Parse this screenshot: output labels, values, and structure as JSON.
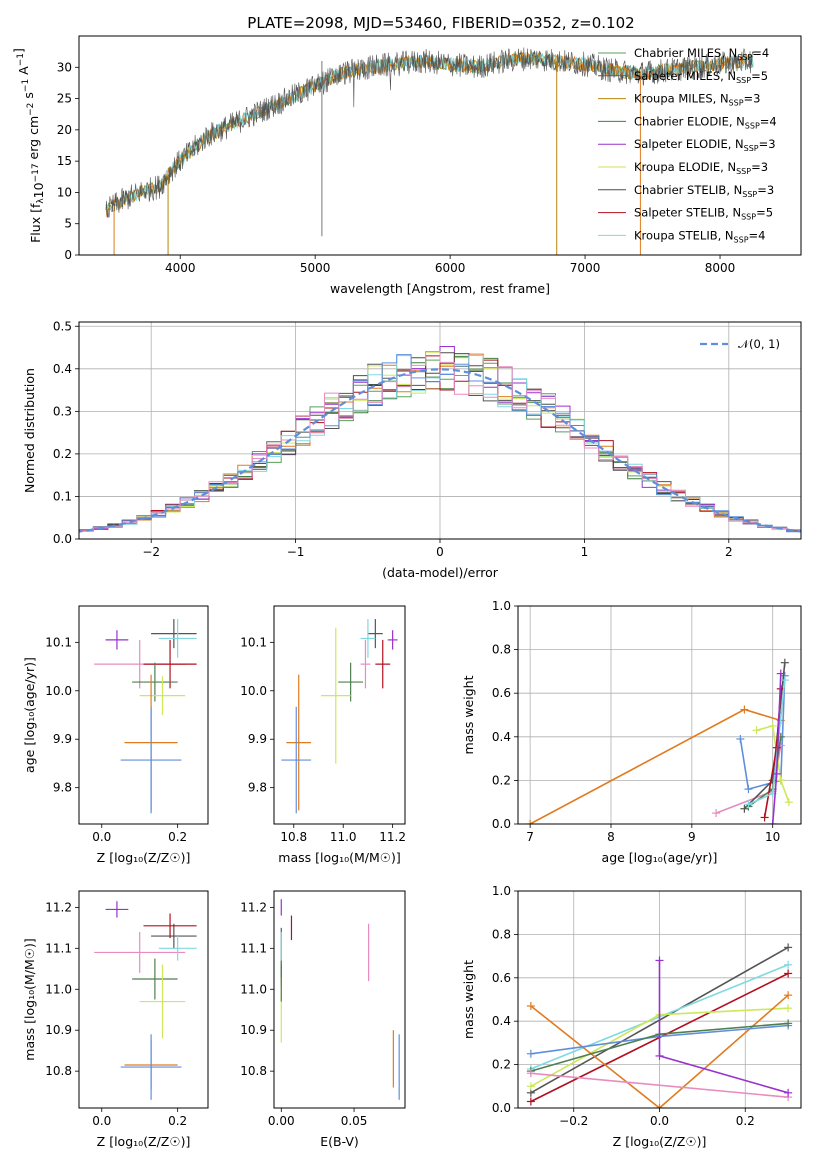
{
  "title": "PLATE=2098, MJD=53460, FIBERID=0352, z=0.102",
  "colors": {
    "Chabrier MILES": "#5aa05a",
    "Salpeter MILES": "#555555",
    "Kroupa MILES": "#b8860b",
    "Chabrier ELODIE": "#3f7f3f",
    "Salpeter ELODIE": "#9932cc",
    "Kroupa ELODIE": "#d4e157",
    "Chabrier STELIB": "#4d4d4d",
    "Salpeter STELIB": "#b01020",
    "Kroupa STELIB": "#80d8e0",
    "orange": "#e07b20",
    "blue": "#5f8fdc",
    "pink": "#e88cc0",
    "yellowgreen": "#cde85a",
    "darkgray": "#555555",
    "red": "#b01020",
    "cyan": "#80d8e0",
    "darkgreen": "#4f7f4f",
    "purple": "#9932cc"
  },
  "chart_data": [
    {
      "type": "line",
      "name": "spectrum",
      "xlabel": "wavelength [Angstrom, rest frame]",
      "ylabel_parts": [
        "Flux [f",
        "λ",
        "10",
        "−17",
        " erg cm",
        "−2",
        " s",
        "−1",
        " A",
        "−1",
        "]"
      ],
      "xlim": [
        3250,
        8600
      ],
      "ylim": [
        0,
        35
      ],
      "xticks": [
        4000,
        5000,
        6000,
        7000,
        8000
      ],
      "yticks": [
        0,
        5,
        10,
        15,
        20,
        25,
        30
      ],
      "legend": [
        {
          "name": "Chabrier MILES",
          "n": "4"
        },
        {
          "name": "Salpeter MILES",
          "n": "5"
        },
        {
          "name": "Kroupa MILES",
          "n": "3"
        },
        {
          "name": "Chabrier ELODIE",
          "n": "4"
        },
        {
          "name": "Salpeter ELODIE",
          "n": "3"
        },
        {
          "name": "Kroupa ELODIE",
          "n": "3"
        },
        {
          "name": "Chabrier STELIB",
          "n": "3"
        },
        {
          "name": "Salpeter STELIB",
          "n": "5"
        },
        {
          "name": "Kroupa STELIB",
          "n": "4"
        }
      ],
      "legend_sub": "SSP",
      "legend_prefix": "N",
      "legend_placement": "upper-right",
      "continuum": [
        [
          3450,
          7
        ],
        [
          3550,
          8.5
        ],
        [
          3700,
          10
        ],
        [
          3850,
          11
        ],
        [
          3950,
          14
        ],
        [
          4050,
          16
        ],
        [
          4200,
          19
        ],
        [
          4400,
          21
        ],
        [
          4600,
          23
        ],
        [
          4800,
          25
        ],
        [
          5000,
          27
        ],
        [
          5200,
          29
        ],
        [
          5400,
          30
        ],
        [
          5600,
          30.5
        ],
        [
          5800,
          31
        ],
        [
          6000,
          30.5
        ],
        [
          6200,
          30
        ],
        [
          6400,
          31
        ],
        [
          6600,
          31.5
        ],
        [
          6800,
          31
        ],
        [
          7000,
          30.5
        ],
        [
          7200,
          29.5
        ],
        [
          7400,
          29
        ],
        [
          7600,
          29.5
        ],
        [
          7800,
          30
        ],
        [
          8000,
          30.5
        ],
        [
          8200,
          31
        ]
      ],
      "drops": [
        {
          "x": 3510,
          "series": "orange"
        },
        {
          "x": 3910,
          "series": "Kroupa MILES"
        },
        {
          "x": 6790,
          "series": "Kroupa MILES"
        },
        {
          "x": 7410,
          "series": "orange"
        }
      ],
      "spikes": [
        [
          5050,
          3
        ],
        [
          5060,
          31
        ]
      ]
    },
    {
      "type": "step",
      "name": "residuals",
      "xlabel": "(data-model)/error",
      "ylabel": "Normed distribution",
      "xlim": [
        -2.5,
        2.5
      ],
      "ylim": [
        0,
        0.51
      ],
      "xticks": [
        -2,
        -1,
        0,
        1,
        2
      ],
      "xticklabels": [
        "−2",
        "−1",
        "0",
        "1",
        "2"
      ],
      "yticks": [
        0.0,
        0.1,
        0.2,
        0.3,
        0.4,
        0.5
      ],
      "yticklabels": [
        "0.0",
        "0.1",
        "0.2",
        "0.3",
        "0.4",
        "0.5"
      ],
      "grid": true,
      "gaussian_label": "𝒩(0, 1)",
      "gaussian": {
        "mean": 0,
        "sigma": 1
      },
      "bin_width": 0.1,
      "series_colors": [
        "#5aa05a",
        "#555555",
        "#e07b20",
        "#3f7f3f",
        "#9932cc",
        "#cde85a",
        "#4d4d4d",
        "#b01020",
        "#80d8e0",
        "#5f8fdc",
        "#e88cc0"
      ]
    },
    {
      "type": "errorbar",
      "name": "age-vs-Z",
      "xlabel": "Z [log₁₀(Z/Z☉)]",
      "ylabel": "age  [log₁₀(age/yr)]",
      "xlim": [
        -0.06,
        0.28
      ],
      "ylim": [
        9.725,
        10.175
      ],
      "xticks": [
        0.0,
        0.2
      ],
      "xticklabels": [
        "0.0",
        "0.2"
      ],
      "yticks": [
        9.8,
        9.9,
        10.0,
        10.1
      ],
      "yticklabels": [
        "9.8",
        "9.9",
        "10.0",
        "10.1"
      ],
      "points": [
        {
          "x": 0.04,
          "xe": 0.03,
          "y": 10.105,
          "ye": 0.02,
          "c": "#9932cc"
        },
        {
          "x": 0.1,
          "xe": 0.12,
          "y": 10.055,
          "ye": 0.05,
          "c": "#e88cc0"
        },
        {
          "x": 0.19,
          "xe": 0.06,
          "y": 10.118,
          "ye": 0.03,
          "c": "#555555"
        },
        {
          "x": 0.2,
          "xe": 0.05,
          "y": 10.108,
          "ye": 0.04,
          "c": "#80d8e0"
        },
        {
          "x": 0.18,
          "xe": 0.07,
          "y": 10.055,
          "ye": 0.05,
          "c": "#b01020"
        },
        {
          "x": 0.14,
          "xe": 0.06,
          "y": 10.018,
          "ye": 0.04,
          "c": "#4f7f4f"
        },
        {
          "x": 0.16,
          "xe": 0.06,
          "y": 9.99,
          "ye": 0.04,
          "c": "#cde85a"
        },
        {
          "x": 0.13,
          "xe": 0.07,
          "y": 9.893,
          "ye": 0.14,
          "c": "#e07b20"
        },
        {
          "x": 0.13,
          "xe": 0.08,
          "y": 9.857,
          "ye": 0.11,
          "c": "#5f8fdc"
        }
      ]
    },
    {
      "type": "errorbar",
      "name": "age-vs-mass",
      "xlabel": "mass [log₁₀(M/M☉)]",
      "xlim": [
        10.72,
        11.25
      ],
      "ylim": [
        9.725,
        10.175
      ],
      "xticks": [
        10.8,
        11.0,
        11.2
      ],
      "xticklabels": [
        "10.8",
        "11.0",
        "11.2"
      ],
      "yticks": [
        9.8,
        9.9,
        10.0,
        10.1
      ],
      "yticklabels": [
        "9.8",
        "9.9",
        "10.0",
        "10.1"
      ],
      "points": [
        {
          "x": 11.2,
          "xe": 0.02,
          "y": 10.105,
          "ye": 0.02,
          "c": "#9932cc"
        },
        {
          "x": 11.09,
          "xe": 0.02,
          "y": 10.055,
          "ye": 0.05,
          "c": "#e88cc0"
        },
        {
          "x": 11.13,
          "xe": 0.03,
          "y": 10.118,
          "ye": 0.03,
          "c": "#555555"
        },
        {
          "x": 11.1,
          "xe": 0.03,
          "y": 10.108,
          "ye": 0.04,
          "c": "#80d8e0"
        },
        {
          "x": 11.16,
          "xe": 0.03,
          "y": 10.055,
          "ye": 0.05,
          "c": "#b01020"
        },
        {
          "x": 11.03,
          "xe": 0.05,
          "y": 10.018,
          "ye": 0.04,
          "c": "#4f7f4f"
        },
        {
          "x": 10.97,
          "xe": 0.06,
          "y": 9.99,
          "ye": 0.14,
          "c": "#cde85a"
        },
        {
          "x": 10.82,
          "xe": 0.05,
          "y": 9.893,
          "ye": 0.14,
          "c": "#e07b20"
        },
        {
          "x": 10.81,
          "xe": 0.06,
          "y": 9.857,
          "ye": 0.11,
          "c": "#5f8fdc"
        }
      ]
    },
    {
      "type": "line",
      "name": "weight-vs-age",
      "xlabel": "age  [log₁₀(age/yr)]",
      "ylabel": "mass weight",
      "xlim": [
        6.85,
        10.35
      ],
      "ylim": [
        0,
        1
      ],
      "xticks": [
        7,
        8,
        9,
        10
      ],
      "yticks": [
        0.0,
        0.2,
        0.4,
        0.6,
        0.8,
        1.0
      ],
      "yticklabels": [
        "0.0",
        "0.2",
        "0.4",
        "0.6",
        "0.8",
        "1.0"
      ],
      "grid": true,
      "series": [
        {
          "c": "#e07b20",
          "pts": [
            [
              7.0,
              0.0
            ],
            [
              9.65,
              0.525
            ],
            [
              10.1,
              0.475
            ]
          ]
        },
        {
          "c": "#5f8fdc",
          "pts": [
            [
              9.6,
              0.39
            ],
            [
              9.7,
              0.16
            ],
            [
              10.1,
              0.2
            ],
            [
              10.15,
              0.68
            ]
          ]
        },
        {
          "c": "#e88cc0",
          "pts": [
            [
              9.3,
              0.05
            ],
            [
              10.0,
              0.15
            ],
            [
              10.1,
              0.36
            ]
          ]
        },
        {
          "c": "#cde85a",
          "pts": [
            [
              9.8,
              0.43
            ],
            [
              10.0,
              0.45
            ],
            [
              10.1,
              0.2
            ],
            [
              10.2,
              0.1
            ]
          ]
        },
        {
          "c": "#555555",
          "pts": [
            [
              9.65,
              0.07
            ],
            [
              10.0,
              0.2
            ],
            [
              10.15,
              0.74
            ]
          ]
        },
        {
          "c": "#4f7f4f",
          "pts": [
            [
              9.7,
              0.08
            ],
            [
              10.0,
              0.16
            ],
            [
              10.1,
              0.4
            ]
          ]
        },
        {
          "c": "#b01020",
          "pts": [
            [
              9.9,
              0.03
            ],
            [
              10.05,
              0.35
            ],
            [
              10.1,
              0.62
            ]
          ]
        },
        {
          "c": "#80d8e0",
          "pts": [
            [
              9.7,
              0.09
            ],
            [
              10.0,
              0.14
            ],
            [
              10.15,
              0.66
            ]
          ]
        },
        {
          "c": "#9932cc",
          "pts": [
            [
              10.0,
              0.0
            ],
            [
              10.05,
              0.23
            ],
            [
              10.1,
              0.69
            ]
          ]
        }
      ]
    },
    {
      "type": "errorbar",
      "name": "mass-vs-Z",
      "xlabel": "Z [log₁₀(Z/Z☉)]",
      "ylabel": "mass [log₁₀(M/M☉)]",
      "xlim": [
        -0.06,
        0.28
      ],
      "ylim": [
        10.71,
        11.24
      ],
      "xticks": [
        0.0,
        0.2
      ],
      "xticklabels": [
        "0.0",
        "0.2"
      ],
      "yticks": [
        10.8,
        10.9,
        11.0,
        11.1,
        11.2
      ],
      "yticklabels": [
        "10.8",
        "10.9",
        "11.0",
        "11.1",
        "11.2"
      ],
      "points": [
        {
          "x": 0.04,
          "xe": 0.03,
          "y": 11.195,
          "ye": 0.02,
          "c": "#9932cc"
        },
        {
          "x": 0.1,
          "xe": 0.12,
          "y": 11.09,
          "ye": 0.05,
          "c": "#e88cc0"
        },
        {
          "x": 0.19,
          "xe": 0.06,
          "y": 11.13,
          "ye": 0.03,
          "c": "#555555"
        },
        {
          "x": 0.2,
          "xe": 0.05,
          "y": 11.1,
          "ye": 0.03,
          "c": "#80d8e0"
        },
        {
          "x": 0.18,
          "xe": 0.07,
          "y": 11.155,
          "ye": 0.03,
          "c": "#b01020"
        },
        {
          "x": 0.14,
          "xe": 0.06,
          "y": 11.025,
          "ye": 0.05,
          "c": "#4f7f4f"
        },
        {
          "x": 0.16,
          "xe": 0.06,
          "y": 10.97,
          "ye": 0.09,
          "c": "#cde85a"
        },
        {
          "x": 0.13,
          "xe": 0.07,
          "y": 10.815,
          "ye": 0.06,
          "c": "#e07b20"
        },
        {
          "x": 0.13,
          "xe": 0.08,
          "y": 10.81,
          "ye": 0.08,
          "c": "#5f8fdc"
        }
      ]
    },
    {
      "type": "errorbar",
      "name": "mass-vs-ebv",
      "xlabel": "E(B-V)",
      "xlim": [
        -0.005,
        0.085
      ],
      "ylim": [
        10.71,
        11.24
      ],
      "xticks": [
        0.0,
        0.05
      ],
      "xticklabels": [
        "0.00",
        "0.05"
      ],
      "yticks": [
        10.8,
        10.9,
        11.0,
        11.1,
        11.2
      ],
      "yticklabels": [
        "10.8",
        "10.9",
        "11.0",
        "11.1",
        "11.2"
      ],
      "points": [
        {
          "x": 0.0,
          "xe": 0,
          "y": 11.2,
          "ye": 0.02,
          "c": "#9932cc"
        },
        {
          "x": 0.0,
          "xe": 0,
          "y": 11.08,
          "ye": 0.07,
          "c": "#555555"
        },
        {
          "x": 0.0,
          "xe": 0,
          "y": 11.1,
          "ye": 0.04,
          "c": "#80d8e0"
        },
        {
          "x": 0.0,
          "xe": 0,
          "y": 10.95,
          "ye": 0.08,
          "c": "#cde85a"
        },
        {
          "x": 0.0,
          "xe": 0,
          "y": 11.02,
          "ye": 0.05,
          "c": "#4f7f4f"
        },
        {
          "x": 0.007,
          "xe": 0,
          "y": 11.15,
          "ye": 0.03,
          "c": "#b01020"
        },
        {
          "x": 0.06,
          "xe": 0,
          "y": 11.09,
          "ye": 0.07,
          "c": "#e88cc0"
        },
        {
          "x": 0.077,
          "xe": 0,
          "y": 10.83,
          "ye": 0.07,
          "c": "#e07b20"
        },
        {
          "x": 0.081,
          "xe": 0,
          "y": 10.81,
          "ye": 0.08,
          "c": "#5f8fdc"
        }
      ]
    },
    {
      "type": "line",
      "name": "weight-vs-Z",
      "xlabel": "Z [log₁₀(Z/Z☉)]",
      "ylabel": "mass weight",
      "xlim": [
        -0.33,
        0.33
      ],
      "ylim": [
        0,
        1
      ],
      "xticks": [
        -0.2,
        0.0,
        0.2
      ],
      "xticklabels": [
        "−0.2",
        "0.0",
        "0.2"
      ],
      "yticks": [
        0.0,
        0.2,
        0.4,
        0.6,
        0.8,
        1.0
      ],
      "yticklabels": [
        "0.0",
        "0.2",
        "0.4",
        "0.6",
        "0.8",
        "1.0"
      ],
      "grid": true,
      "series": [
        {
          "c": "#555555",
          "pts": [
            [
              -0.3,
              0.07
            ],
            [
              0.3,
              0.74
            ]
          ]
        },
        {
          "c": "#80d8e0",
          "pts": [
            [
              -0.3,
              0.18
            ],
            [
              0.3,
              0.66
            ]
          ]
        },
        {
          "c": "#b01020",
          "pts": [
            [
              -0.3,
              0.03
            ],
            [
              0.3,
              0.62
            ]
          ]
        },
        {
          "c": "#cde85a",
          "pts": [
            [
              -0.3,
              0.1
            ],
            [
              0.0,
              0.43
            ],
            [
              0.3,
              0.46
            ]
          ]
        },
        {
          "c": "#e07b20",
          "pts": [
            [
              -0.3,
              0.47
            ],
            [
              0.0,
              0.0
            ],
            [
              0.3,
              0.52
            ]
          ]
        },
        {
          "c": "#5f8fdc",
          "pts": [
            [
              -0.3,
              0.25
            ],
            [
              0.0,
              0.33
            ],
            [
              0.3,
              0.38
            ]
          ]
        },
        {
          "c": "#4f7f4f",
          "pts": [
            [
              -0.3,
              0.17
            ],
            [
              0.0,
              0.34
            ],
            [
              0.3,
              0.39
            ]
          ]
        },
        {
          "c": "#e88cc0",
          "pts": [
            [
              -0.3,
              0.16
            ],
            [
              0.3,
              0.05
            ]
          ]
        },
        {
          "c": "#9932cc",
          "pts": [
            [
              0.0,
              0.68
            ],
            [
              0.0,
              0.24
            ],
            [
              0.3,
              0.07
            ]
          ]
        }
      ]
    }
  ]
}
